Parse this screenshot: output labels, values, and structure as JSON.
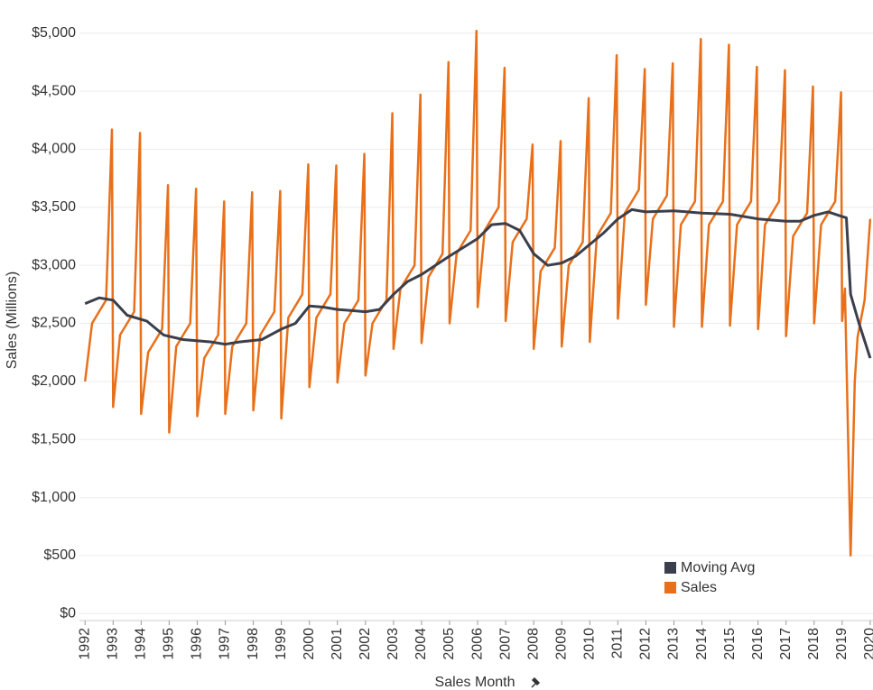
{
  "chart_data": {
    "type": "line",
    "x_label": "Sales Month",
    "y_label": "Sales (Millions)",
    "xlim": [
      1991.8,
      2020.1
    ],
    "ylim": [
      -60,
      5130
    ],
    "xticks": [
      1992,
      1993,
      1994,
      1995,
      1996,
      1997,
      1998,
      1999,
      2000,
      2001,
      2002,
      2003,
      2004,
      2005,
      2006,
      2007,
      2008,
      2009,
      2010,
      2011,
      2012,
      2013,
      2014,
      2015,
      2016,
      2017,
      2018,
      2019,
      2020
    ],
    "yticks": [
      {
        "value": 0,
        "label": "$0"
      },
      {
        "value": 500,
        "label": "$500"
      },
      {
        "value": 1000,
        "label": "$1,000"
      },
      {
        "value": 1500,
        "label": "$1,500"
      },
      {
        "value": 2000,
        "label": "$2,000"
      },
      {
        "value": 2500,
        "label": "$2,500"
      },
      {
        "value": 3000,
        "label": "$3,000"
      },
      {
        "value": 3500,
        "label": "$3,500"
      },
      {
        "value": 4000,
        "label": "$4,000"
      },
      {
        "value": 4500,
        "label": "$4,500"
      },
      {
        "value": 5000,
        "label": "$5,000"
      }
    ],
    "grid": true,
    "legend": "lower-right",
    "series": [
      {
        "name": "Sales",
        "color": "#e8701a",
        "x": [
          1992,
          1992.25,
          1992.5,
          1992.75,
          1992.96,
          1993,
          1993.25,
          1993.5,
          1993.75,
          1993.96,
          1994,
          1994.25,
          1994.5,
          1994.75,
          1994.96,
          1995,
          1995.25,
          1995.5,
          1995.75,
          1995.96,
          1996,
          1996.25,
          1996.5,
          1996.75,
          1996.96,
          1997,
          1997.25,
          1997.5,
          1997.75,
          1997.96,
          1998,
          1998.25,
          1998.5,
          1998.75,
          1998.96,
          1999,
          1999.25,
          1999.5,
          1999.75,
          1999.96,
          2000,
          2000.25,
          2000.5,
          2000.75,
          2000.96,
          2001,
          2001.25,
          2001.5,
          2001.75,
          2001.96,
          2002,
          2002.25,
          2002.5,
          2002.75,
          2002.96,
          2003,
          2003.25,
          2003.5,
          2003.75,
          2003.96,
          2004,
          2004.25,
          2004.5,
          2004.75,
          2004.96,
          2005,
          2005.25,
          2005.5,
          2005.75,
          2005.96,
          2006,
          2006.25,
          2006.5,
          2006.75,
          2006.96,
          2007,
          2007.25,
          2007.5,
          2007.75,
          2007.96,
          2008,
          2008.25,
          2008.5,
          2008.75,
          2008.96,
          2009,
          2009.25,
          2009.5,
          2009.75,
          2009.96,
          2010,
          2010.25,
          2010.5,
          2010.75,
          2010.96,
          2011,
          2011.25,
          2011.5,
          2011.75,
          2011.96,
          2012,
          2012.25,
          2012.5,
          2012.75,
          2012.96,
          2013,
          2013.25,
          2013.5,
          2013.75,
          2013.96,
          2014,
          2014.25,
          2014.5,
          2014.75,
          2014.96,
          2015,
          2015.25,
          2015.5,
          2015.75,
          2015.96,
          2016,
          2016.25,
          2016.5,
          2016.75,
          2016.96,
          2017,
          2017.25,
          2017.5,
          2017.75,
          2017.96,
          2018,
          2018.25,
          2018.5,
          2018.75,
          2018.96,
          2019,
          2019.1,
          2019.3,
          2019.45,
          2019.55,
          2019.8,
          2020
        ],
        "values": [
          2000,
          2500,
          2600,
          2700,
          4170,
          1780,
          2400,
          2500,
          2600,
          4140,
          1720,
          2250,
          2350,
          2450,
          3690,
          1560,
          2300,
          2400,
          2500,
          3660,
          1700,
          2200,
          2300,
          2400,
          3550,
          1720,
          2300,
          2400,
          2500,
          3630,
          1750,
          2400,
          2500,
          2600,
          3640,
          1680,
          2550,
          2650,
          2750,
          3870,
          1950,
          2550,
          2650,
          2750,
          3860,
          1990,
          2500,
          2600,
          2700,
          3960,
          2050,
          2500,
          2600,
          2700,
          4310,
          2280,
          2800,
          2900,
          3000,
          4470,
          2330,
          2900,
          3000,
          3100,
          4750,
          2500,
          3100,
          3200,
          3300,
          5020,
          2640,
          3300,
          3400,
          3500,
          4700,
          2520,
          3200,
          3300,
          3400,
          4040,
          2280,
          2950,
          3050,
          3150,
          4070,
          2300,
          3000,
          3100,
          3200,
          4440,
          2340,
          3250,
          3350,
          3450,
          4810,
          2540,
          3450,
          3550,
          3650,
          4690,
          2660,
          3400,
          3500,
          3600,
          4740,
          2470,
          3350,
          3450,
          3550,
          4950,
          2470,
          3350,
          3450,
          3550,
          4900,
          2480,
          3350,
          3450,
          3550,
          4710,
          2450,
          3350,
          3450,
          3550,
          4680,
          2390,
          3250,
          3350,
          3450,
          4540,
          2500,
          3350,
          3450,
          3550,
          4490,
          2520,
          2800,
          500,
          2000,
          2380,
          2700,
          3400
        ]
      },
      {
        "name": "Moving Avg",
        "color": "#3b3f4b",
        "x": [
          1992,
          1992.5,
          1993,
          1993.5,
          1994.2,
          1994.8,
          1995.5,
          1996.5,
          1997,
          1997.5,
          1998.3,
          1999,
          1999.5,
          2000,
          2000.5,
          2001,
          2002,
          2002.5,
          2003,
          2003.5,
          2004,
          2005,
          2006,
          2006.5,
          2007,
          2007.5,
          2008,
          2008.5,
          2009,
          2009.5,
          2010,
          2010.5,
          2011,
          2011.5,
          2012,
          2013,
          2014,
          2015,
          2016,
          2017,
          2017.5,
          2018,
          2018.5,
          2019,
          2019.15,
          2019.3,
          2019.6,
          2020
        ],
        "values": [
          2670,
          2720,
          2700,
          2570,
          2520,
          2400,
          2360,
          2340,
          2320,
          2340,
          2360,
          2450,
          2500,
          2650,
          2640,
          2620,
          2600,
          2620,
          2750,
          2860,
          2920,
          3080,
          3230,
          3350,
          3360,
          3300,
          3100,
          3000,
          3020,
          3080,
          3180,
          3280,
          3400,
          3480,
          3460,
          3470,
          3450,
          3440,
          3400,
          3380,
          3380,
          3430,
          3460,
          3420,
          3410,
          2750,
          2500,
          2200
        ]
      }
    ]
  }
}
